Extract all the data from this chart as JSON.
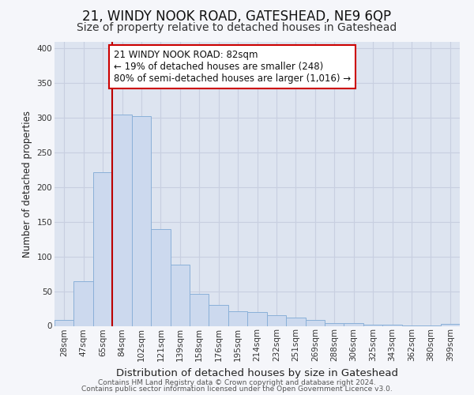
{
  "title": "21, WINDY NOOK ROAD, GATESHEAD, NE9 6QP",
  "subtitle": "Size of property relative to detached houses in Gateshead",
  "xlabel": "Distribution of detached houses by size in Gateshead",
  "ylabel": "Number of detached properties",
  "bar_labels": [
    "28sqm",
    "47sqm",
    "65sqm",
    "84sqm",
    "102sqm",
    "121sqm",
    "139sqm",
    "158sqm",
    "176sqm",
    "195sqm",
    "214sqm",
    "232sqm",
    "251sqm",
    "269sqm",
    "288sqm",
    "306sqm",
    "325sqm",
    "343sqm",
    "362sqm",
    "380sqm",
    "399sqm"
  ],
  "bar_values": [
    9,
    64,
    221,
    305,
    302,
    139,
    88,
    46,
    30,
    21,
    20,
    15,
    12,
    9,
    4,
    4,
    2,
    2,
    1,
    1,
    3
  ],
  "bar_color": "#ccd9ee",
  "bar_edge_color": "#8ab0d8",
  "grid_color": "#c8cfe0",
  "background_color": "#dde4f0",
  "fig_facecolor": "#f5f6fa",
  "vline_color": "#bb0000",
  "vline_index": 3,
  "annotation_text": "21 WINDY NOOK ROAD: 82sqm\n← 19% of detached houses are smaller (248)\n80% of semi-detached houses are larger (1,016) →",
  "annotation_box_edge_color": "#cc0000",
  "ylim": [
    0,
    410
  ],
  "yticks": [
    0,
    50,
    100,
    150,
    200,
    250,
    300,
    350,
    400
  ],
  "footer1": "Contains HM Land Registry data © Crown copyright and database right 2024.",
  "footer2": "Contains public sector information licensed under the Open Government Licence v3.0.",
  "title_fontsize": 12,
  "subtitle_fontsize": 10,
  "xlabel_fontsize": 9.5,
  "ylabel_fontsize": 8.5,
  "tick_fontsize": 7.5,
  "annotation_fontsize": 8.5,
  "footer_fontsize": 6.5
}
